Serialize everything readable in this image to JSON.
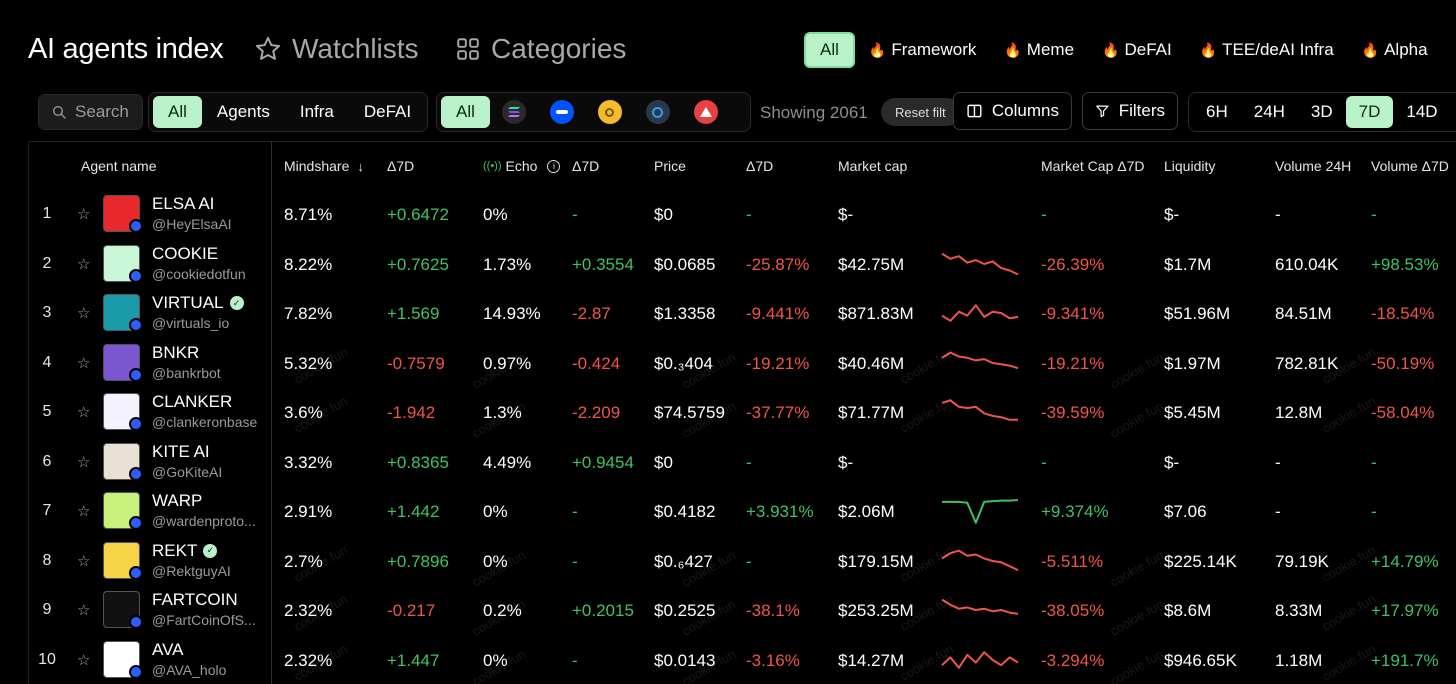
{
  "header": {
    "title": "AI agents index",
    "watchlists": "Watchlists",
    "categories": "Categories",
    "category_tabs": [
      "All",
      "Framework",
      "Meme",
      "DeFAI",
      "TEE/deAI Infra",
      "Alpha"
    ]
  },
  "toolbar": {
    "search_placeholder": "Search",
    "type_filters": [
      "All",
      "Agents",
      "Infra",
      "DeFAI"
    ],
    "chain_all": "All",
    "chains": [
      {
        "icon": "solana-icon",
        "color": "#9945ff"
      },
      {
        "icon": "base-icon",
        "color": "#0052ff"
      },
      {
        "icon": "bnb-icon",
        "color": "#f3ba2f"
      },
      {
        "icon": "arbitrum-icon",
        "color": "#28a0f0"
      },
      {
        "icon": "avalanche-icon",
        "color": "#e84142"
      }
    ],
    "showing": "Showing 2061",
    "reset": "Reset filt",
    "columns": "Columns",
    "filters": "Filters",
    "timeframes": [
      "6H",
      "24H",
      "3D",
      "7D",
      "14D"
    ],
    "active_timeframe": "7D"
  },
  "table": {
    "columns": {
      "agent": "Agent name",
      "mindshare": "Mindshare",
      "d1": "Δ7D",
      "echo": "Echo",
      "d2": "Δ7D",
      "price": "Price",
      "d3": "Δ7D",
      "mcap": "Market cap",
      "mcap_change": "Market Cap Δ7D",
      "liquidity": "Liquidity",
      "volume": "Volume 24H",
      "volume_change": "Volume Δ7D"
    },
    "watermark": "cookie.fun",
    "rows": [
      {
        "rank": "1",
        "name": "ELSA AI",
        "handle": "@HeyElsaAI",
        "verified": false,
        "avatar": "#e8282b",
        "mindshare": "8.71%",
        "ms_delta": "+0.6472",
        "echo": "0%",
        "echo_delta": "-",
        "price": "$0",
        "price_delta": "-",
        "mcap": "$-",
        "mcap_delta": "-",
        "liquidity": "$-",
        "volume": "-",
        "volume_delta": "-",
        "spark": []
      },
      {
        "rank": "2",
        "name": "COOKIE",
        "handle": "@cookiedotfun",
        "verified": false,
        "avatar": "#c8f6d6",
        "mindshare": "8.22%",
        "ms_delta": "+0.7625",
        "echo": "1.73%",
        "echo_delta": "+0.3554",
        "price": "$0.0685",
        "price_delta": "-25.87%",
        "mcap": "$42.75M",
        "mcap_delta": "-26.39%",
        "liquidity": "$1.7M",
        "volume": "610.04K",
        "volume_delta": "+98.53%",
        "spark": [
          0.9,
          0.7,
          0.8,
          0.55,
          0.65,
          0.5,
          0.6,
          0.35,
          0.25,
          0.1
        ]
      },
      {
        "rank": "3",
        "name": "VIRTUAL",
        "handle": "@virtuals_io",
        "verified": true,
        "avatar": "#1a9aa8",
        "mindshare": "7.82%",
        "ms_delta": "+1.569",
        "echo": "14.93%",
        "echo_delta": "-2.87",
        "price": "$1.3358",
        "price_delta": "-9.441%",
        "mcap": "$871.83M",
        "mcap_delta": "-9.341%",
        "liquidity": "$51.96M",
        "volume": "84.51M",
        "volume_delta": "-18.54%",
        "spark": [
          0.4,
          0.2,
          0.55,
          0.4,
          0.8,
          0.35,
          0.55,
          0.5,
          0.3,
          0.35
        ]
      },
      {
        "rank": "4",
        "name": "BNKR",
        "handle": "@bankrbot",
        "verified": false,
        "avatar": "#7a57d1",
        "mindshare": "5.32%",
        "ms_delta": "-0.7579",
        "echo": "0.97%",
        "echo_delta": "-0.424",
        "price": "$0.₃404",
        "price_delta": "-19.21%",
        "mcap": "$40.46M",
        "mcap_delta": "-19.21%",
        "liquidity": "$1.97M",
        "volume": "782.81K",
        "volume_delta": "-50.19%",
        "spark": [
          0.7,
          0.9,
          0.75,
          0.7,
          0.6,
          0.65,
          0.5,
          0.45,
          0.4,
          0.3
        ]
      },
      {
        "rank": "5",
        "name": "CLANKER",
        "handle": "@clankeronbase",
        "verified": false,
        "avatar": "#f4f2ff",
        "mindshare": "3.6%",
        "ms_delta": "-1.942",
        "echo": "1.3%",
        "echo_delta": "-2.209",
        "price": "$74.5759",
        "price_delta": "-37.77%",
        "mcap": "$71.77M",
        "mcap_delta": "-39.59%",
        "liquidity": "$5.45M",
        "volume": "12.8M",
        "volume_delta": "-58.04%",
        "spark": [
          0.85,
          0.95,
          0.7,
          0.65,
          0.7,
          0.45,
          0.35,
          0.3,
          0.2,
          0.2
        ]
      },
      {
        "rank": "6",
        "name": "KITE AI",
        "handle": "@GoKiteAI",
        "verified": false,
        "avatar": "#e9e1d5",
        "mindshare": "3.32%",
        "ms_delta": "+0.8365",
        "echo": "4.49%",
        "echo_delta": "+0.9454",
        "price": "$0",
        "price_delta": "-",
        "mcap": "$-",
        "mcap_delta": "-",
        "liquidity": "$-",
        "volume": "-",
        "volume_delta": "-",
        "spark": []
      },
      {
        "rank": "7",
        "name": "WARP",
        "handle": "@wardenproto...",
        "verified": false,
        "avatar": "#c6f17a",
        "mindshare": "2.91%",
        "ms_delta": "+1.442",
        "echo": "0%",
        "echo_delta": "-",
        "price": "$0.4182",
        "price_delta": "+3.931%",
        "mcap": "$2.06M",
        "mcap_delta": "+9.374%",
        "liquidity": "$7.06",
        "volume": "-",
        "volume_delta": "-",
        "spark": [
          0.85,
          0.85,
          0.85,
          0.82,
          0.05,
          0.85,
          0.88,
          0.9,
          0.9,
          0.92
        ]
      },
      {
        "rank": "8",
        "name": "REKT",
        "handle": "@RektguyAI",
        "verified": true,
        "avatar": "#f7d347",
        "mindshare": "2.7%",
        "ms_delta": "+0.7896",
        "echo": "0%",
        "echo_delta": "-",
        "price": "$0.₆427",
        "price_delta": "-",
        "mcap": "$179.15M",
        "mcap_delta": "-5.511%",
        "liquidity": "$225.14K",
        "volume": "79.19K",
        "volume_delta": "+14.79%",
        "spark": [
          0.6,
          0.8,
          0.9,
          0.7,
          0.75,
          0.6,
          0.5,
          0.45,
          0.3,
          0.15
        ]
      },
      {
        "rank": "9",
        "name": "FARTCOIN",
        "handle": "@FartCoinOfS...",
        "verified": false,
        "avatar": "#111111",
        "mindshare": "2.32%",
        "ms_delta": "-0.217",
        "echo": "0.2%",
        "echo_delta": "+0.2015",
        "price": "$0.2525",
        "price_delta": "-38.1%",
        "mcap": "$253.25M",
        "mcap_delta": "-38.05%",
        "liquidity": "$8.6M",
        "volume": "8.33M",
        "volume_delta": "+17.97%",
        "spark": [
          0.9,
          0.7,
          0.55,
          0.6,
          0.5,
          0.55,
          0.45,
          0.5,
          0.4,
          0.35
        ]
      },
      {
        "rank": "10",
        "name": "AVA",
        "handle": "@AVA_holo",
        "verified": false,
        "avatar": "#ffffff",
        "mindshare": "2.32%",
        "ms_delta": "+1.447",
        "echo": "0%",
        "echo_delta": "-",
        "price": "$0.0143",
        "price_delta": "-3.16%",
        "mcap": "$14.27M",
        "mcap_delta": "-3.294%",
        "liquidity": "$946.65K",
        "volume": "1.18M",
        "volume_delta": "+191.7%",
        "spark": [
          0.3,
          0.6,
          0.2,
          0.7,
          0.4,
          0.8,
          0.5,
          0.3,
          0.6,
          0.4
        ]
      }
    ]
  },
  "colors": {
    "accent": "#b9f2c9",
    "positive": "#3fc262",
    "negative": "#f0554a"
  }
}
